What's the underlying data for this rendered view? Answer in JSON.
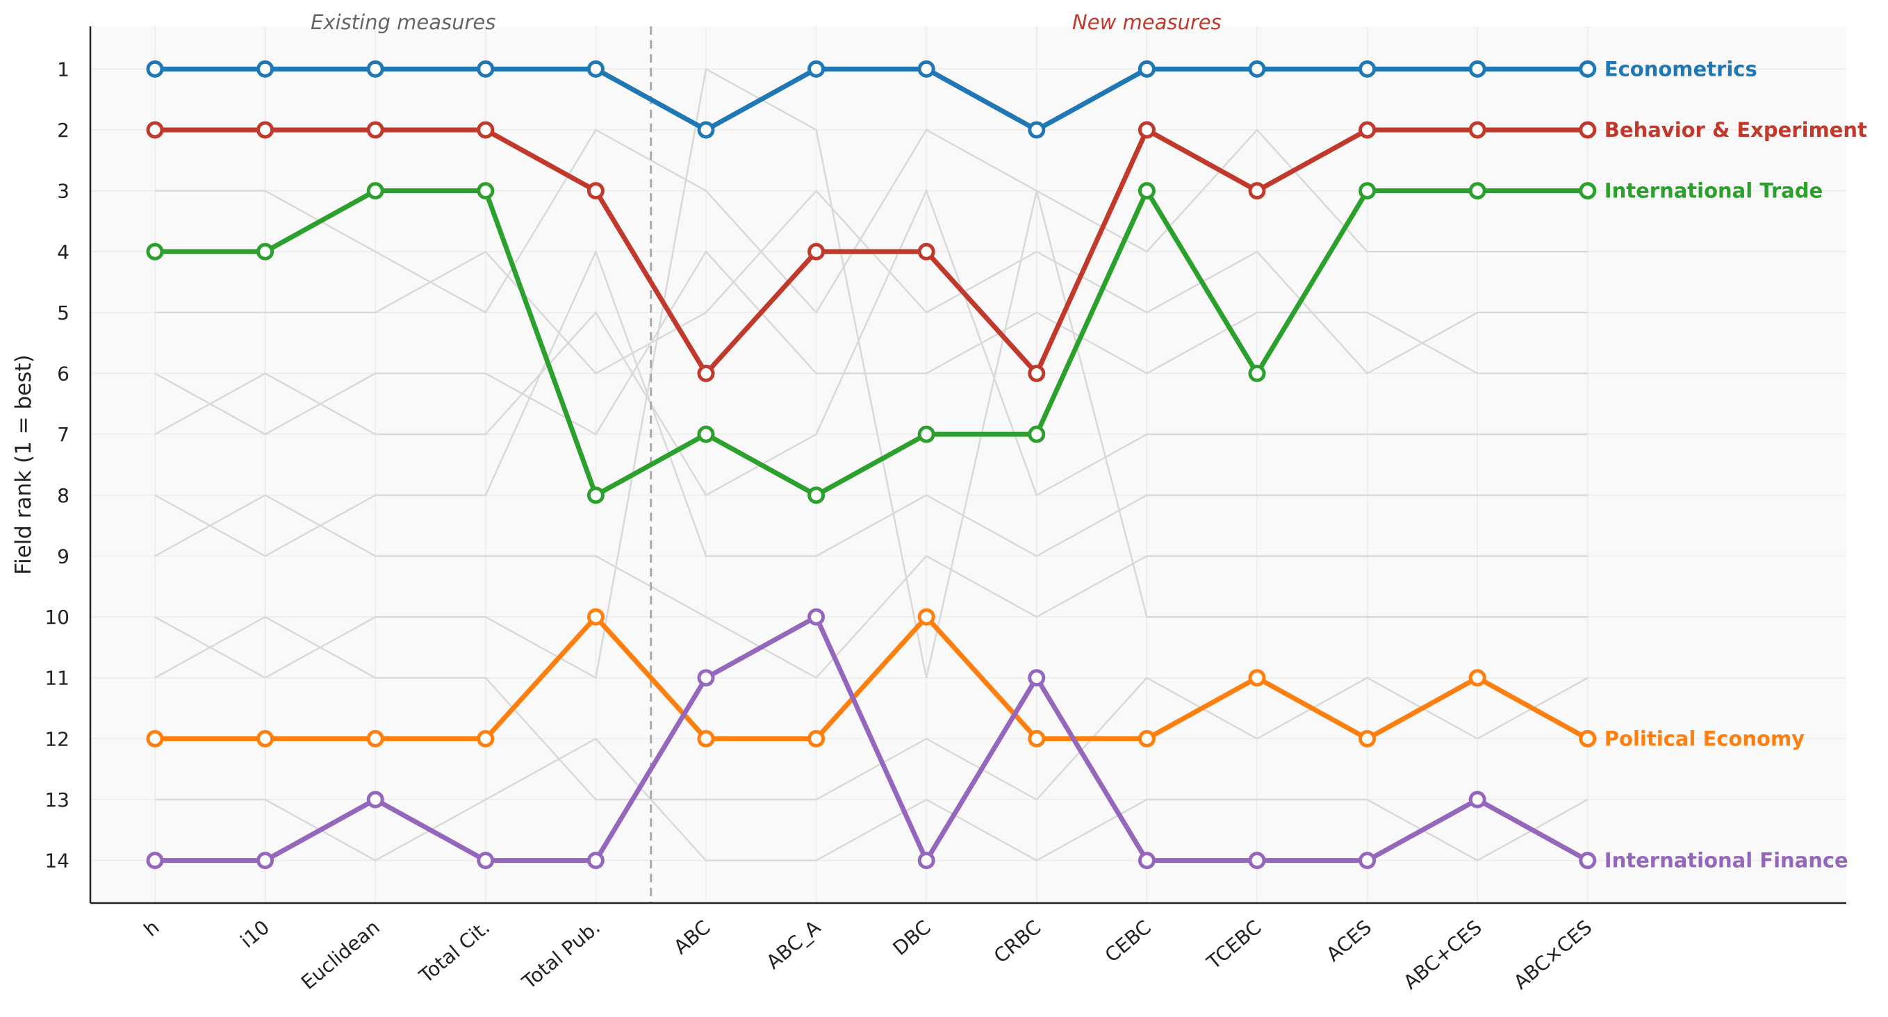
{
  "chart_data": {
    "type": "line",
    "ylabel": "Field rank (1 = best)",
    "xlabel": "",
    "y_reversed": true,
    "ylim": [
      14.7,
      0.3
    ],
    "yticks": [
      "1",
      "2",
      "3",
      "4",
      "5",
      "6",
      "7",
      "8",
      "9",
      "10",
      "11",
      "12",
      "13",
      "14"
    ],
    "grid": "horizontal",
    "divider_after_index": 4,
    "sections": [
      {
        "label": "Existing measures",
        "color": "#666666"
      },
      {
        "label": "New measures",
        "color": "#c0392b"
      }
    ],
    "categories": [
      "h",
      "i10",
      "Euclidean",
      "Total Cit.",
      "Total Pub.",
      "ABC",
      "ABC_A",
      "DBC",
      "CRBC",
      "CEBC",
      "TCEBC",
      "ACES",
      "ABC+CES",
      "ABC×CES"
    ],
    "category_groups": [
      "existing",
      "existing",
      "existing",
      "existing",
      "existing",
      "new",
      "new",
      "new",
      "new",
      "new",
      "new",
      "new",
      "new",
      "new"
    ],
    "category_colors": {
      "existing": "#222222",
      "new": "#c0392b"
    },
    "series": [
      {
        "name": "Econometrics",
        "color": "#1f77b4",
        "values": [
          1,
          1,
          1,
          1,
          1,
          2,
          1,
          1,
          2,
          1,
          1,
          1,
          1,
          1
        ]
      },
      {
        "name": "Behavior & Experiment",
        "color": "#c0392b",
        "values": [
          2,
          2,
          2,
          2,
          3,
          6,
          4,
          4,
          6,
          2,
          3,
          2,
          2,
          2
        ]
      },
      {
        "name": "International Trade",
        "color": "#2ca02c",
        "values": [
          4,
          4,
          3,
          3,
          8,
          7,
          8,
          7,
          7,
          3,
          6,
          3,
          3,
          3
        ]
      },
      {
        "name": "Political Economy",
        "color": "#ff7f0e",
        "values": [
          12,
          12,
          12,
          12,
          10,
          12,
          12,
          10,
          12,
          12,
          11,
          12,
          11,
          12
        ]
      },
      {
        "name": "International Finance",
        "color": "#9467bd",
        "values": [
          14,
          14,
          13,
          14,
          14,
          11,
          10,
          14,
          11,
          14,
          14,
          14,
          13,
          14
        ]
      }
    ],
    "background_series_color": "#d9d9d9",
    "background_series": [
      [
        3,
        3,
        4,
        5,
        2,
        3,
        5,
        2,
        3,
        4,
        2,
        4,
        4,
        4
      ],
      [
        5,
        5,
        5,
        4,
        6,
        5,
        3,
        5,
        4,
        5,
        4,
        6,
        5,
        5
      ],
      [
        6,
        7,
        6,
        6,
        7,
        4,
        6,
        6,
        5,
        6,
        5,
        5,
        6,
        6
      ],
      [
        7,
        6,
        7,
        7,
        5,
        8,
        7,
        3,
        8,
        7,
        7,
        7,
        7,
        7
      ],
      [
        8,
        9,
        8,
        8,
        4,
        9,
        9,
        8,
        9,
        8,
        8,
        8,
        8,
        8
      ],
      [
        9,
        8,
        9,
        9,
        9,
        10,
        11,
        9,
        10,
        9,
        9,
        9,
        9,
        9
      ],
      [
        10,
        11,
        10,
        10,
        11,
        1,
        2,
        11,
        3,
        10,
        10,
        10,
        10,
        10
      ],
      [
        11,
        10,
        11,
        11,
        13,
        13,
        13,
        12,
        13,
        11,
        12,
        11,
        12,
        11
      ],
      [
        13,
        13,
        14,
        13,
        12,
        14,
        14,
        13,
        14,
        13,
        13,
        13,
        14,
        13
      ]
    ]
  }
}
